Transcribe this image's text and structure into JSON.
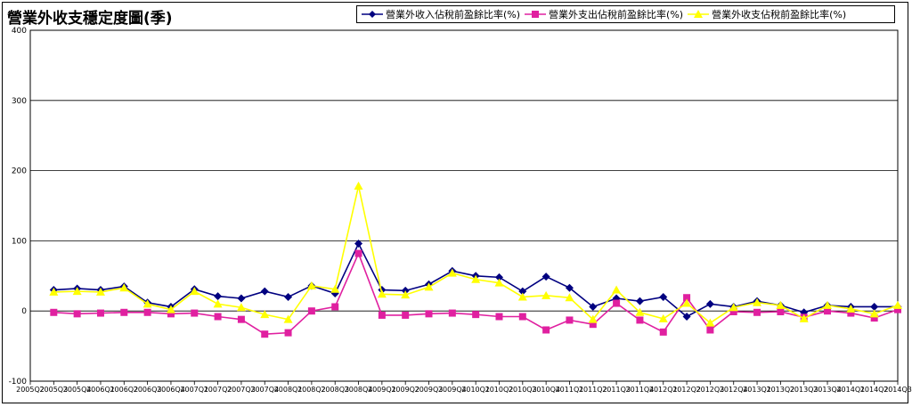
{
  "chart_data": {
    "type": "line",
    "title": "營業外收支穩定度圖(季)",
    "xlabel": "",
    "ylabel": "",
    "ylim": [
      -100,
      400
    ],
    "yticks": [
      -100,
      0,
      100,
      200,
      300,
      400
    ],
    "grid": true,
    "legend_position": "top-right",
    "categories": [
      "2005Q2",
      "2005Q3",
      "2005Q4",
      "2006Q1",
      "2006Q2",
      "2006Q3",
      "2006Q4",
      "2007Q1",
      "2007Q2",
      "2007Q3",
      "2007Q4",
      "2008Q1",
      "2008Q2",
      "2008Q3",
      "2008Q4",
      "2009Q1",
      "2009Q2",
      "2009Q3",
      "2009Q4",
      "2010Q1",
      "2010Q2",
      "2010Q3",
      "2010Q4",
      "2011Q1",
      "2011Q2",
      "2011Q3",
      "2011Q4",
      "2012Q1",
      "2012Q2",
      "2012Q3",
      "2012Q4",
      "2013Q1",
      "2013Q2",
      "2013Q3",
      "2013Q4",
      "2014Q1",
      "2014Q2",
      "2014Q3"
    ],
    "series": [
      {
        "name": "營業外收入佔稅前盈餘比率(%)",
        "color": "#000080",
        "marker": "diamond",
        "values": [
          null,
          30,
          32,
          30,
          35,
          12,
          6,
          31,
          21,
          18,
          28,
          20,
          36,
          25,
          96,
          30,
          29,
          38,
          57,
          50,
          48,
          28,
          49,
          33,
          6,
          18,
          14,
          20,
          -8,
          10,
          6,
          14,
          8,
          -2,
          8,
          6,
          6,
          6
        ]
      },
      {
        "name": "營業外支出佔稅前盈餘比率(%)",
        "color": "#E020A0",
        "marker": "square",
        "values": [
          null,
          -2,
          -4,
          -3,
          -2,
          -2,
          -4,
          -3,
          -8,
          -12,
          -33,
          -31,
          0,
          6,
          82,
          -6,
          -6,
          -4,
          -3,
          -5,
          -8,
          -8,
          -27,
          -13,
          -19,
          11,
          -13,
          -30,
          19,
          -27,
          -1,
          -2,
          -1,
          -9,
          0,
          -3,
          -10,
          2
        ]
      },
      {
        "name": "營業外收支佔稅前盈餘比率(%)",
        "color": "#FFFF00",
        "marker": "triangle",
        "values": [
          null,
          27,
          28,
          27,
          33,
          10,
          2,
          28,
          10,
          5,
          -5,
          -12,
          36,
          31,
          178,
          24,
          23,
          34,
          54,
          45,
          40,
          20,
          22,
          19,
          -12,
          30,
          -2,
          -11,
          11,
          -17,
          5,
          12,
          8,
          -11,
          8,
          3,
          -4,
          8
        ]
      }
    ]
  }
}
